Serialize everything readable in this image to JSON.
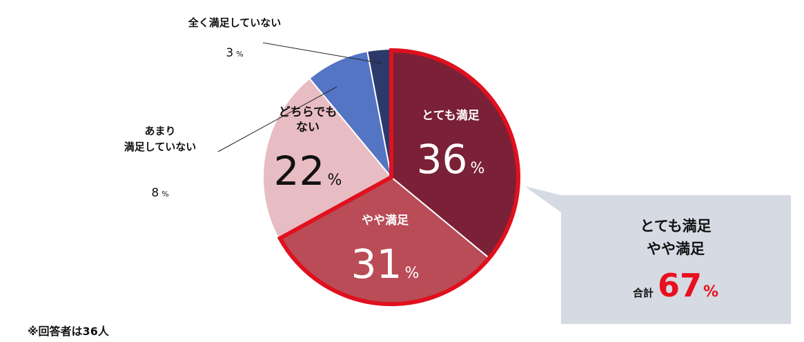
{
  "chart_data": {
    "type": "pie",
    "title": "",
    "start": "top",
    "direction": "clockwise",
    "slices": [
      {
        "label": "とても満足",
        "value": 36,
        "unit": "%",
        "color": "#7a2137"
      },
      {
        "label": "やや満足",
        "value": 31,
        "unit": "%",
        "color": "#b94c57"
      },
      {
        "label": "どちらでも\nない",
        "value": 22,
        "unit": "%",
        "color": "#e8bcc3"
      },
      {
        "label": "あまり\n満足していない",
        "value": 8,
        "unit": "%",
        "color": "#5474c4"
      },
      {
        "label": "全く満足していない",
        "value": 3,
        "unit": "%",
        "color": "#2c3a6b"
      }
    ],
    "highlight": {
      "slices": [
        "とても満足",
        "やや満足"
      ],
      "outline_color": "#e0101e",
      "lines": [
        "とても満足",
        "やや満足"
      ],
      "total_label": "合計",
      "total_value": 67,
      "total_unit": "%",
      "total_color": "#e8101e",
      "box_color": "#d5dae3"
    }
  },
  "footnote": "※回答者は36人"
}
